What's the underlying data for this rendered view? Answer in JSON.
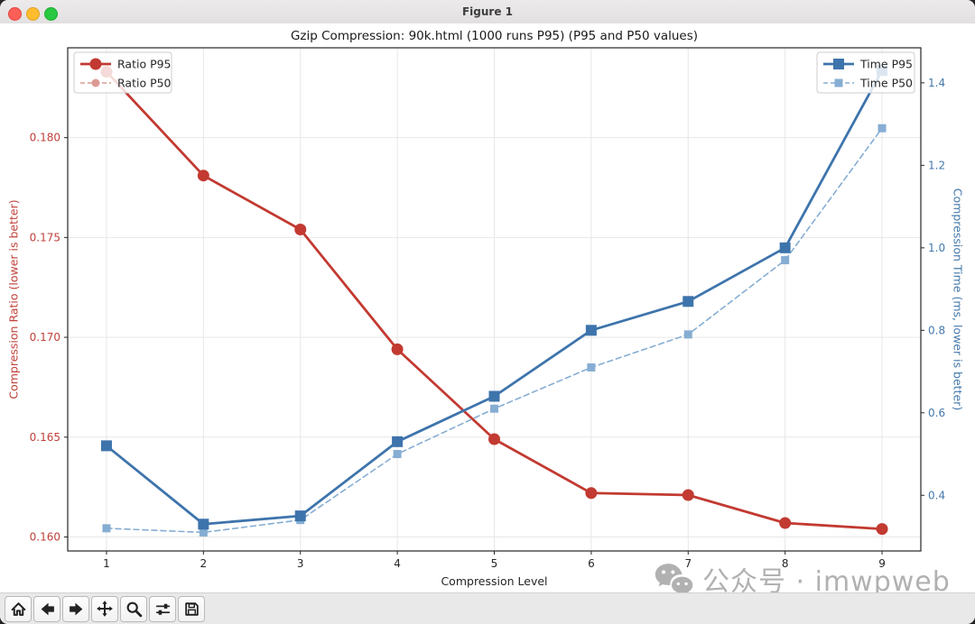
{
  "window": {
    "title": "Figure 1",
    "controls": [
      "close",
      "minimize",
      "zoom"
    ]
  },
  "toolbar": {
    "buttons": [
      "home",
      "back",
      "forward",
      "pan",
      "zoom-to-rect",
      "configure-subplots",
      "save"
    ]
  },
  "watermark": {
    "icon": "wechat-icon",
    "text": "公众号 · imwpweb",
    "color": "#b1b1b1"
  },
  "chart_data": {
    "type": "line",
    "title": "Gzip Compression: 90k.html (1000 runs P95) (P95 and P50 values)",
    "xlabel": "Compression Level",
    "x": [
      1,
      2,
      3,
      4,
      5,
      6,
      7,
      8,
      9
    ],
    "xlim": [
      0.6,
      9.4
    ],
    "grid": true,
    "left_axis": {
      "label": "Compression Ratio (lower is better)",
      "color": "#c0413a",
      "ticks": [
        0.16,
        0.165,
        0.17,
        0.175,
        0.18
      ],
      "tick_labels": [
        "0.160",
        "0.165",
        "0.170",
        "0.175",
        "0.180"
      ],
      "lim": [
        0.1593,
        0.1845
      ]
    },
    "right_axis": {
      "label": "Compression Time (ms, lower is better)",
      "color": "#4478ab",
      "ticks": [
        0.4,
        0.6,
        0.8,
        1.0,
        1.2,
        1.4
      ],
      "tick_labels": [
        "0.4",
        "0.6",
        "0.8",
        "1.0",
        "1.2",
        "1.4"
      ],
      "lim": [
        0.265,
        1.485
      ]
    },
    "series": [
      {
        "name": "Ratio P50",
        "axis": "left",
        "style": "dashed",
        "color": "#dd9a94",
        "marker": "circle",
        "marker_size": 9,
        "values": [
          0.1833,
          0.1781,
          0.1754,
          0.1694,
          0.1649,
          0.1622,
          0.1621,
          0.1607,
          0.1604
        ]
      },
      {
        "name": "Ratio P95",
        "axis": "left",
        "style": "solid",
        "color": "#c23a31",
        "marker": "circle",
        "marker_size": 13,
        "values": [
          0.1833,
          0.1781,
          0.1754,
          0.1694,
          0.1649,
          0.1622,
          0.1621,
          0.1607,
          0.1604
        ]
      },
      {
        "name": "Time P50",
        "axis": "right",
        "style": "dashed",
        "color": "#86add3",
        "marker": "square",
        "marker_size": 9,
        "values": [
          0.32,
          0.31,
          0.34,
          0.5,
          0.61,
          0.71,
          0.79,
          0.97,
          1.29
        ]
      },
      {
        "name": "Time P95",
        "axis": "right",
        "style": "solid",
        "color": "#3e74ac",
        "marker": "square",
        "marker_size": 12,
        "values": [
          0.52,
          0.33,
          0.35,
          0.53,
          0.64,
          0.8,
          0.87,
          1.0,
          1.43
        ]
      }
    ],
    "legends": [
      {
        "position": "upper-left",
        "entries": [
          "Ratio P95",
          "Ratio P50"
        ]
      },
      {
        "position": "upper-right",
        "entries": [
          "Time P95",
          "Time P50"
        ]
      }
    ]
  }
}
